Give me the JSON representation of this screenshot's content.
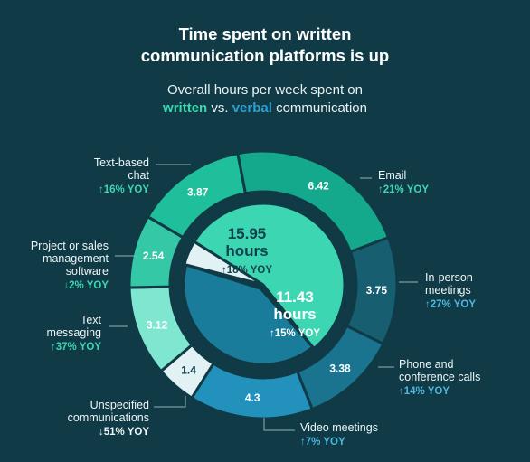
{
  "title_line1": "Time spent on written",
  "title_line2": "communication platforms is up",
  "subtitle_line1": "Overall hours per week spent on",
  "subtitle_written": "written",
  "subtitle_vs": " vs. ",
  "subtitle_verbal": "verbal",
  "subtitle_end": " communication",
  "colors": {
    "background": "#0f3a46",
    "written_accent": "#3dd6b2",
    "verbal_accent": "#2f9fd0",
    "unspecified": "#e2f1f3"
  },
  "chart_data": {
    "type": "pie",
    "inner": [
      {
        "value_label": "15.95",
        "unit": "hours",
        "yoy": "↑18% YOY",
        "value": 15.95,
        "color": "#3dd6b2"
      },
      {
        "value_label": "11.43",
        "unit": "hours",
        "yoy": "↑15% YOY",
        "value": 11.43,
        "color": "#1a7c9b"
      },
      {
        "value_label": "",
        "unit": "",
        "yoy": "",
        "value": 1.4,
        "color": "#e2f1f3"
      }
    ],
    "outer": [
      {
        "name_lines": [
          "Email"
        ],
        "value": 6.42,
        "value_label": "6.42",
        "yoy": "↑21% YOY",
        "group": "written",
        "color": "#14a98c"
      },
      {
        "name_lines": [
          "In-person",
          "meetings"
        ],
        "value": 3.75,
        "value_label": "3.75",
        "yoy": "↑27% YOY",
        "group": "verbal",
        "color": "#165e70"
      },
      {
        "name_lines": [
          "Phone and",
          "conference calls"
        ],
        "value": 3.38,
        "value_label": "3.38",
        "yoy": "↑14% YOY",
        "group": "verbal",
        "color": "#1a7490"
      },
      {
        "name_lines": [
          "Video meetings"
        ],
        "value": 4.3,
        "value_label": "4.3",
        "yoy": "↑7% YOY",
        "group": "verbal",
        "color": "#2292bd"
      },
      {
        "name_lines": [
          "Unspecified",
          "communications"
        ],
        "value": 1.4,
        "value_label": "1.4",
        "yoy": "↓51% YOY",
        "group": "unspecified",
        "color": "#e2f1f3"
      },
      {
        "name_lines": [
          "Text",
          "messaging"
        ],
        "value": 3.12,
        "value_label": "3.12",
        "yoy": "↑37% YOY",
        "group": "written",
        "color": "#7fe6d0"
      },
      {
        "name_lines": [
          "Project or sales",
          "management",
          "software"
        ],
        "value": 2.54,
        "value_label": "2.54",
        "yoy": "↓2% YOY",
        "group": "written",
        "color": "#34c8a6"
      },
      {
        "name_lines": [
          "Text-based",
          "chat"
        ],
        "value": 3.87,
        "value_label": "3.87",
        "yoy": "↑16% YOY",
        "group": "written",
        "color": "#1fbf9b"
      }
    ]
  }
}
